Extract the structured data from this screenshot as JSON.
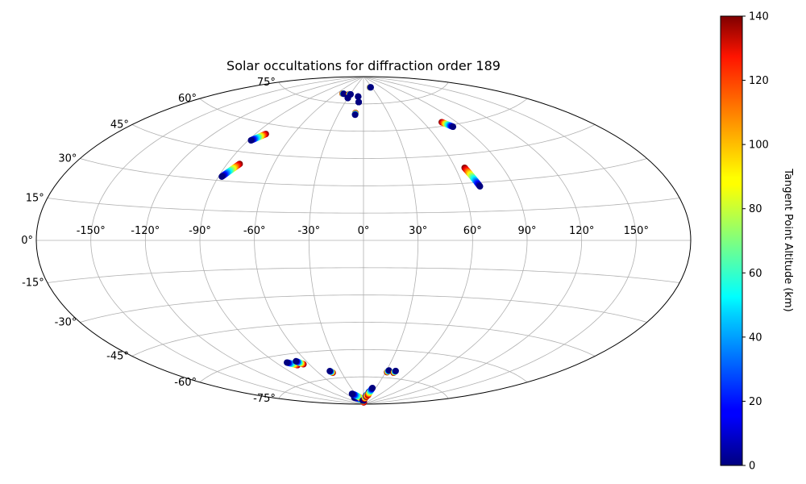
{
  "chart_data": {
    "type": "scatter",
    "projection": "aitoff",
    "title": "Solar occultations for diffraction order 189",
    "xlim": [
      -180,
      180
    ],
    "ylim": [
      -90,
      90
    ],
    "grid": true,
    "lon_ticks": [
      -150,
      -120,
      -90,
      -60,
      -30,
      0,
      30,
      60,
      90,
      120,
      150
    ],
    "lat_ticks": [
      -75,
      -60,
      -45,
      -30,
      -15,
      0,
      15,
      30,
      45,
      60,
      75
    ],
    "lon_tick_labels": [
      "-150°",
      "-120°",
      "-90°",
      "-60°",
      "-30°",
      "0°",
      "30°",
      "60°",
      "90°",
      "120°",
      "150°"
    ],
    "lat_tick_labels": [
      "-75°",
      "-60°",
      "-45°",
      "-30°",
      "-15°",
      "0°",
      "15°",
      "30°",
      "45°",
      "60°",
      "75°"
    ],
    "colorbar": {
      "label": "Tangent Point Altitude (km)",
      "colormap": "jet",
      "range": [
        0,
        140
      ],
      "ticks": [
        0,
        20,
        40,
        60,
        80,
        100,
        120,
        140
      ],
      "tick_labels": [
        "0",
        "20",
        "40",
        "60",
        "80",
        "100",
        "120",
        "140"
      ]
    },
    "tracks": [
      {
        "start": [
          -82,
          55
        ],
        "end": [
          -88,
          51
        ],
        "alt_start": 140,
        "alt_end": 0
      },
      {
        "start": [
          -82,
          39
        ],
        "end": [
          -88,
          32
        ],
        "alt_start": 140,
        "alt_end": 0
      },
      {
        "start": [
          -48,
          80
        ],
        "end": [
          -45,
          80
        ],
        "alt_start": 140,
        "alt_end": 0
      },
      {
        "start": [
          -33,
          80
        ],
        "end": [
          -29,
          80
        ],
        "alt_start": 140,
        "alt_end": 0
      },
      {
        "start": [
          -30,
          78
        ],
        "end": [
          -30,
          78
        ],
        "alt_start": 0,
        "alt_end": 0
      },
      {
        "start": [
          -11,
          79
        ],
        "end": [
          -11,
          79
        ],
        "alt_start": 0,
        "alt_end": 0
      },
      {
        "start": [
          -8,
          76
        ],
        "end": [
          -8,
          76
        ],
        "alt_start": 0,
        "alt_end": 0
      },
      {
        "start": [
          -10,
          70
        ],
        "end": [
          -10,
          69
        ],
        "alt_start": 140,
        "alt_end": 0
      },
      {
        "start": [
          23,
          84
        ],
        "end": [
          26,
          84
        ],
        "alt_start": 140,
        "alt_end": 0
      },
      {
        "start": [
          77,
          62
        ],
        "end": [
          82,
          59
        ],
        "alt_start": 140,
        "alt_end": 0
      },
      {
        "start": [
          66,
          38
        ],
        "end": [
          70,
          28
        ],
        "alt_start": 140,
        "alt_end": 0
      },
      {
        "start": [
          -73,
          -66
        ],
        "end": [
          -80,
          -64
        ],
        "alt_start": 140,
        "alt_end": 0
      },
      {
        "start": [
          -66,
          -66
        ],
        "end": [
          -70,
          -64
        ],
        "alt_start": 140,
        "alt_end": 0
      },
      {
        "start": [
          -42,
          -72
        ],
        "end": [
          -44,
          -71
        ],
        "alt_start": 140,
        "alt_end": 0
      },
      {
        "start": [
          32,
          -72
        ],
        "end": [
          33,
          -71
        ],
        "alt_start": 140,
        "alt_end": 0
      },
      {
        "start": [
          41,
          -72
        ],
        "end": [
          42,
          -71
        ],
        "alt_start": 140,
        "alt_end": 0
      },
      {
        "start": [
          -50,
          -86
        ],
        "end": [
          5,
          -89
        ],
        "alt_start": 0,
        "alt_end": 140
      },
      {
        "start": [
          -42,
          -84
        ],
        "end": [
          -15,
          -87
        ],
        "alt_start": 0,
        "alt_end": 140
      },
      {
        "start": [
          -8,
          -88
        ],
        "end": [
          -3,
          -88
        ],
        "alt_start": 0,
        "alt_end": 0
      },
      {
        "start": [
          -3,
          -88
        ],
        "end": [
          2,
          -88
        ],
        "alt_start": 0,
        "alt_end": 0
      },
      {
        "start": [
          12,
          -85
        ],
        "end": [
          8,
          -87
        ],
        "alt_start": 0,
        "alt_end": 140
      },
      {
        "start": [
          18,
          -83
        ],
        "end": [
          14,
          -86
        ],
        "alt_start": 0,
        "alt_end": 140
      },
      {
        "start": [
          22,
          -81
        ],
        "end": [
          19,
          -85
        ],
        "alt_start": 0,
        "alt_end": 140
      }
    ]
  }
}
